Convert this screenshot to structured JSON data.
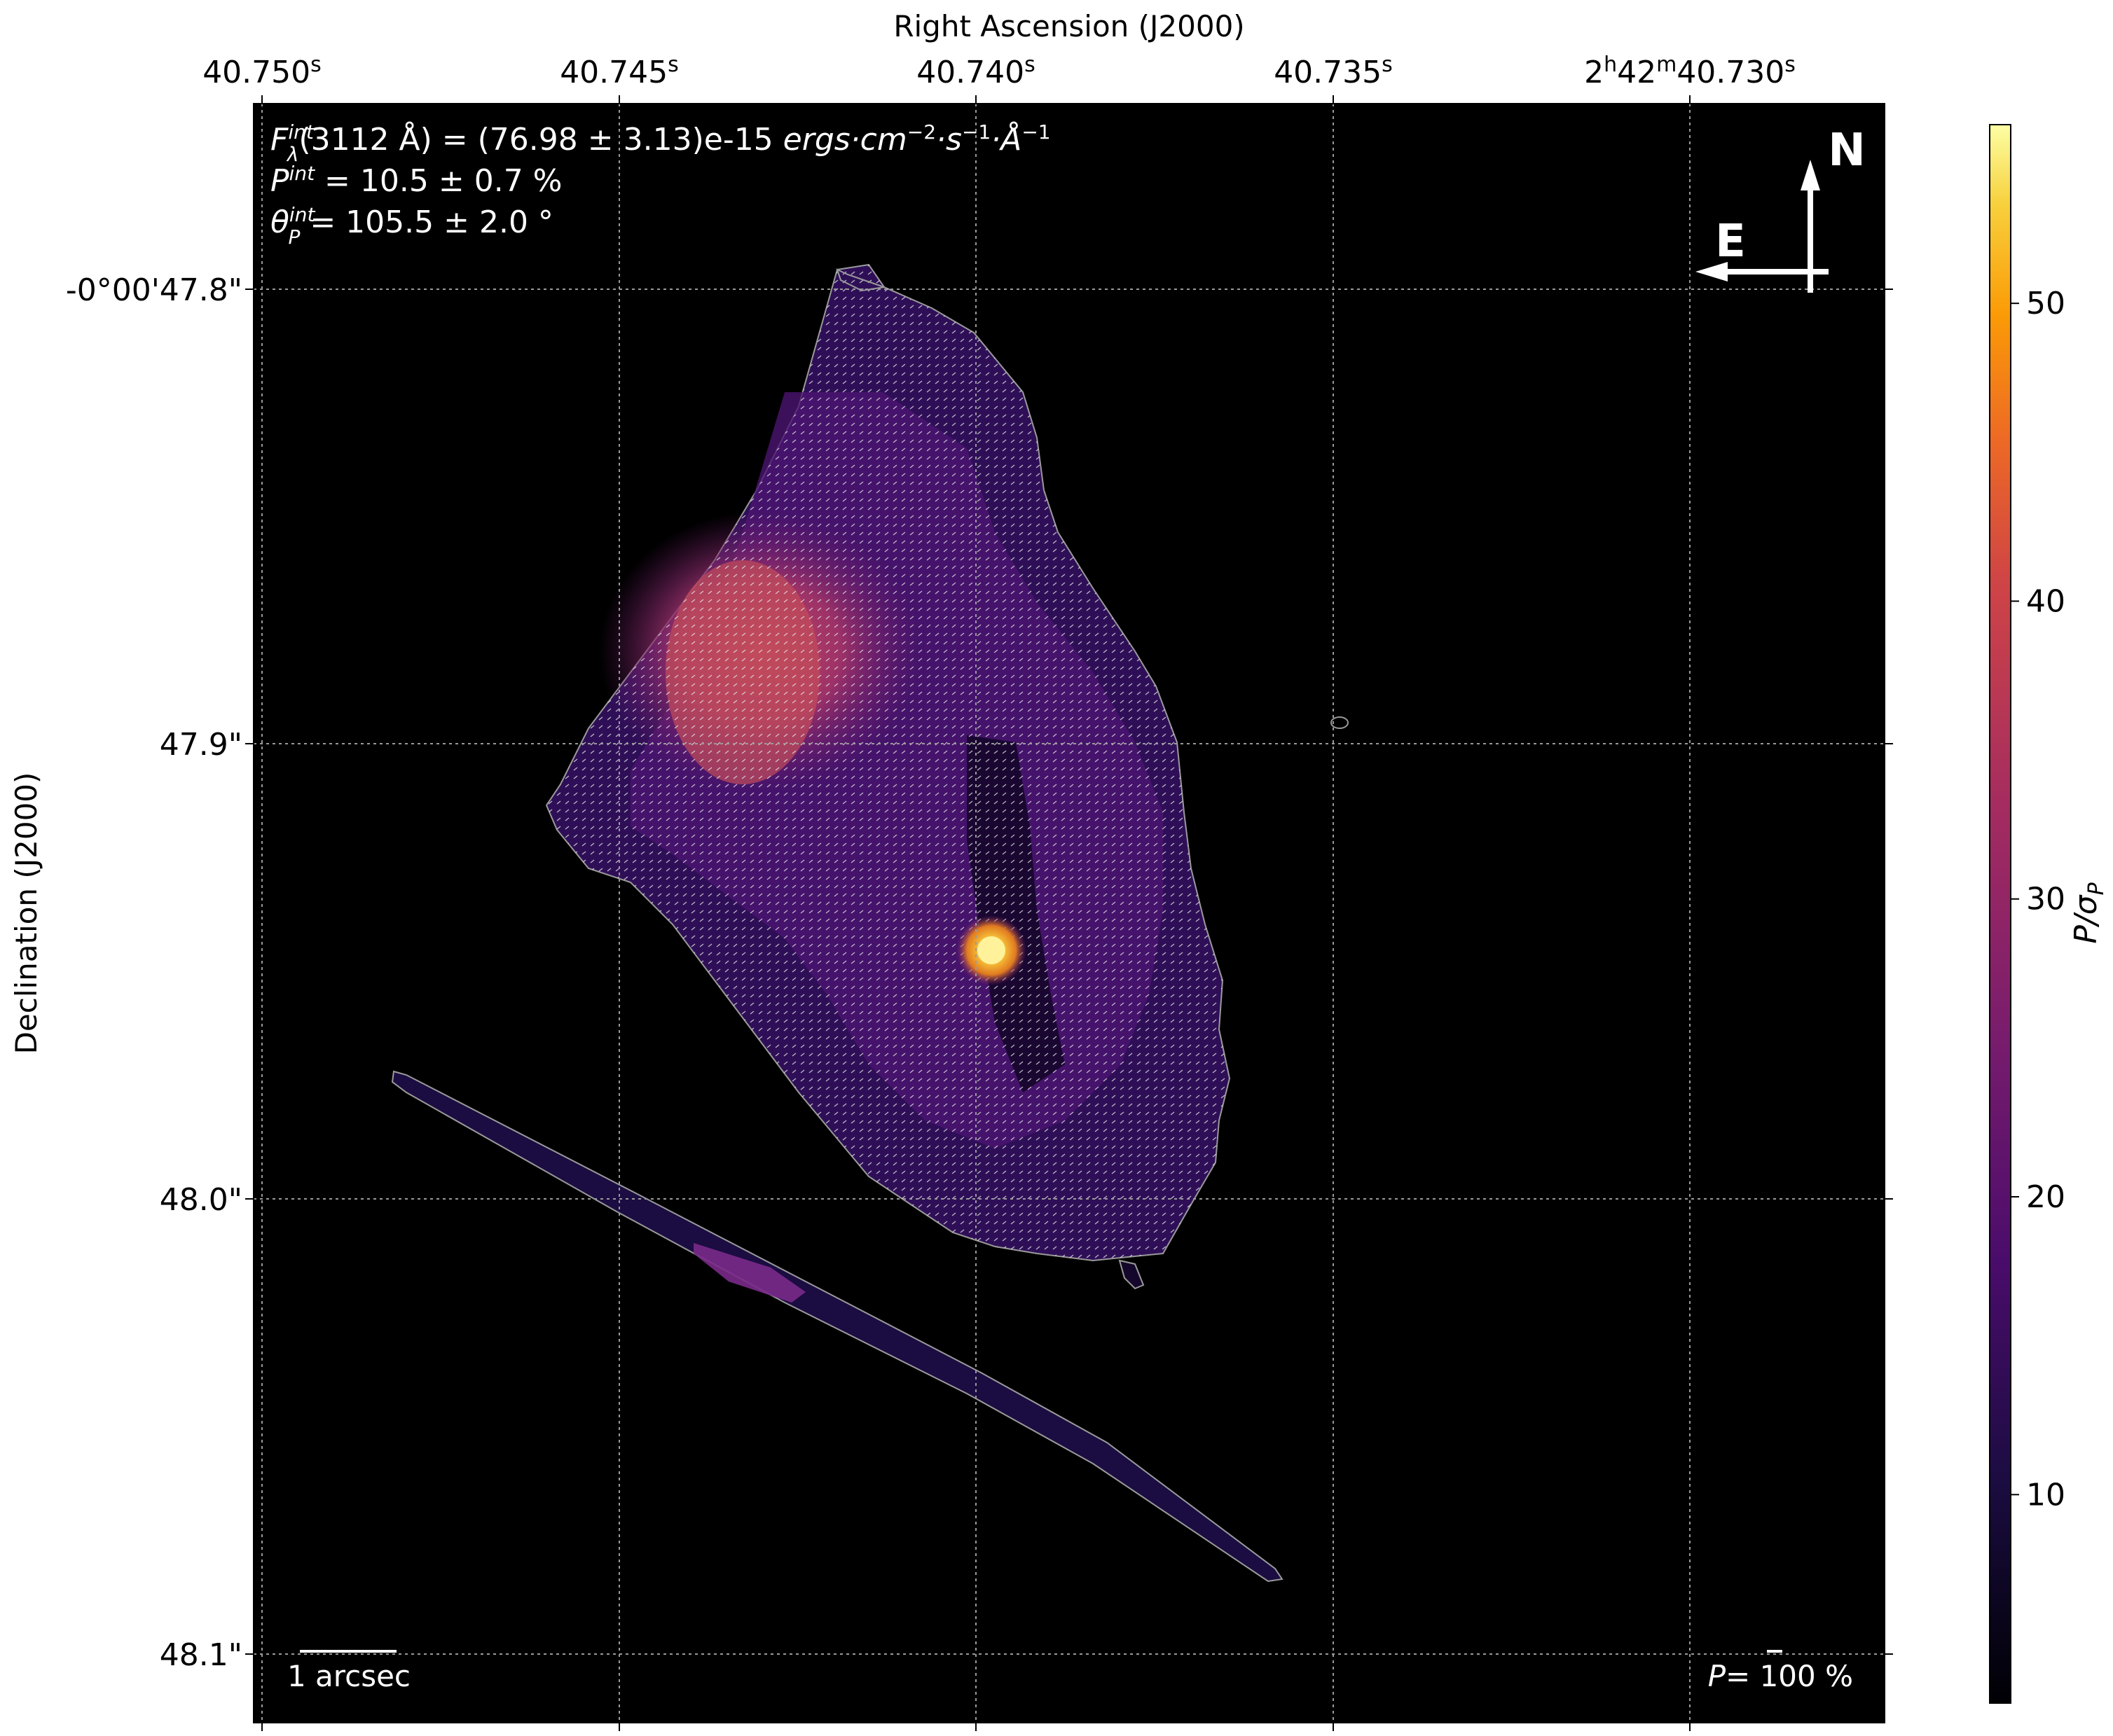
{
  "chart_data": {
    "type": "heatmap",
    "title": "",
    "xlabel": "Right Ascension (J2000)",
    "ylabel": "Declination (J2000)",
    "colorbar_label": "P/σP",
    "colormap": "inferno",
    "x_ticks": [
      {
        "base": "40.750",
        "sup": "s",
        "prefix": ""
      },
      {
        "base": "40.745",
        "sup": "s",
        "prefix": ""
      },
      {
        "base": "40.740",
        "sup": "s",
        "prefix": ""
      },
      {
        "base": "40.735",
        "sup": "s",
        "prefix": ""
      },
      {
        "base": "40.730",
        "sup": "s",
        "prefix": "2h42m"
      }
    ],
    "y_ticks": [
      "-0°00'47.8\"",
      "47.9\"",
      "48.0\"",
      "48.1\""
    ],
    "colorbar_ticks": [
      10,
      20,
      30,
      40,
      50
    ],
    "colorbar_range": [
      3,
      56
    ],
    "grid": true,
    "annotations": {
      "flux_line": "Fλint(3112 Å) = (76.98 ± 3.13)e-15 ergs·cm⁻²·s⁻¹·Å⁻¹",
      "pol_line": "Pint = 10.5 ± 0.7 %",
      "angle_line": "θPint = 105.5 ± 2.0 °",
      "compass_north": "N",
      "compass_east": "E",
      "scale_bar_label": "1 arcsec",
      "vector_scale_label": "P= 100 %"
    },
    "integrated": {
      "wavelength_angstrom": 3112,
      "flux": 76.98,
      "flux_err": 3.13,
      "flux_exponent": -15,
      "P_percent": 10.5,
      "P_err": 0.7,
      "theta_deg": 105.5,
      "theta_err": 2.0
    },
    "regions": [
      {
        "name": "nebula-outline",
        "level": 5
      },
      {
        "name": "ne-lobe-ridge",
        "level": 32
      },
      {
        "name": "ne-lobe-body",
        "level": 26
      },
      {
        "name": "central-source",
        "level": 55
      },
      {
        "name": "diagonal-streak",
        "level": 8
      }
    ]
  },
  "colors": {
    "background": "#000000",
    "grid": "#9a9a9a",
    "annotation_text": "#ffffff"
  }
}
